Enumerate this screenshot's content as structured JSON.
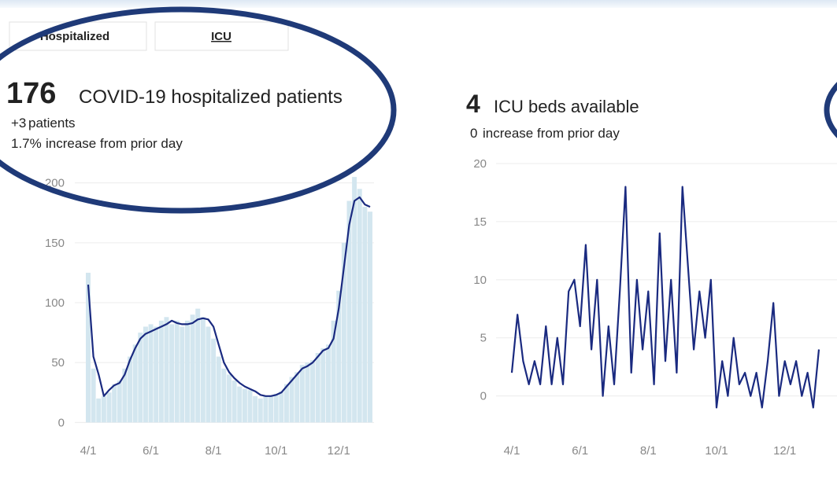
{
  "tabs": [
    "Hospitalized",
    "ICU"
  ],
  "panels": [
    {
      "headline": "176",
      "headline_text": "COVID-19 hospitalized patients",
      "change": "+3",
      "change_text": "patients",
      "percent": "1.7%",
      "percent_text": "increase from prior day"
    },
    {
      "headline": "4",
      "headline_text": "ICU beds available",
      "change": "0",
      "change_text": "increase from prior day"
    }
  ],
  "chart_data": [
    {
      "type": "bar",
      "categories": [
        "4/1",
        null,
        null,
        null,
        null,
        null,
        null,
        null,
        null,
        null,
        null,
        null,
        "6/1",
        null,
        null,
        null,
        null,
        null,
        null,
        null,
        null,
        null,
        null,
        null,
        "8/1",
        null,
        null,
        null,
        null,
        null,
        null,
        null,
        null,
        null,
        null,
        null,
        "10/1",
        null,
        null,
        null,
        null,
        null,
        null,
        null,
        null,
        null,
        null,
        null,
        "12/1",
        null,
        null,
        null,
        null,
        null,
        null
      ],
      "series": [
        {
          "type": "bar",
          "color": "#d3e6ef",
          "values": [
            125,
            45,
            20,
            22,
            25,
            32,
            35,
            45,
            55,
            65,
            75,
            80,
            82,
            80,
            85,
            88,
            82,
            85,
            80,
            85,
            90,
            95,
            88,
            80,
            70,
            55,
            45,
            40,
            35,
            30,
            28,
            27,
            22,
            20,
            22,
            22,
            24,
            26,
            32,
            38,
            42,
            48,
            50,
            52,
            58,
            62,
            65,
            85,
            110,
            150,
            185,
            205,
            195,
            180,
            176
          ]
        },
        {
          "type": "line",
          "color": "#1a2a80",
          "values": [
            115,
            55,
            40,
            22,
            27,
            31,
            33,
            40,
            52,
            62,
            70,
            74,
            76,
            78,
            80,
            82,
            85,
            83,
            82,
            82,
            83,
            86,
            87,
            86,
            80,
            65,
            50,
            42,
            37,
            33,
            30,
            28,
            26,
            23,
            22,
            22,
            23,
            25,
            30,
            35,
            40,
            45,
            47,
            50,
            55,
            60,
            62,
            70,
            95,
            130,
            165,
            185,
            188,
            182,
            180
          ]
        }
      ],
      "ylim": [
        -7,
        207
      ],
      "yticks": [
        0,
        50,
        100,
        150,
        200
      ],
      "grid": true
    },
    {
      "type": "line",
      "categories": [
        "4/1",
        null,
        null,
        null,
        null,
        null,
        null,
        null,
        null,
        null,
        null,
        null,
        "6/1",
        null,
        null,
        null,
        null,
        null,
        null,
        null,
        null,
        null,
        null,
        null,
        "8/1",
        null,
        null,
        null,
        null,
        null,
        null,
        null,
        null,
        null,
        null,
        null,
        "10/1",
        null,
        null,
        null,
        null,
        null,
        null,
        null,
        null,
        null,
        null,
        null,
        "12/1",
        null,
        null,
        null,
        null,
        null,
        null
      ],
      "series": [
        {
          "type": "line",
          "color": "#1a2a80",
          "values": [
            2,
            7,
            3,
            1,
            3,
            1,
            6,
            1,
            5,
            1,
            9,
            10,
            6,
            13,
            4,
            10,
            0,
            6,
            1,
            9,
            18,
            2,
            10,
            4,
            9,
            1,
            14,
            3,
            10,
            2,
            18,
            11,
            4,
            9,
            5,
            10,
            -1,
            3,
            0,
            5,
            1,
            2,
            0,
            2,
            -1,
            3,
            8,
            0,
            3,
            1,
            3,
            0,
            2,
            -1,
            4
          ]
        }
      ],
      "ylim": [
        -3,
        20
      ],
      "yticks": [
        0,
        5,
        10,
        15,
        20
      ],
      "grid": true
    }
  ]
}
